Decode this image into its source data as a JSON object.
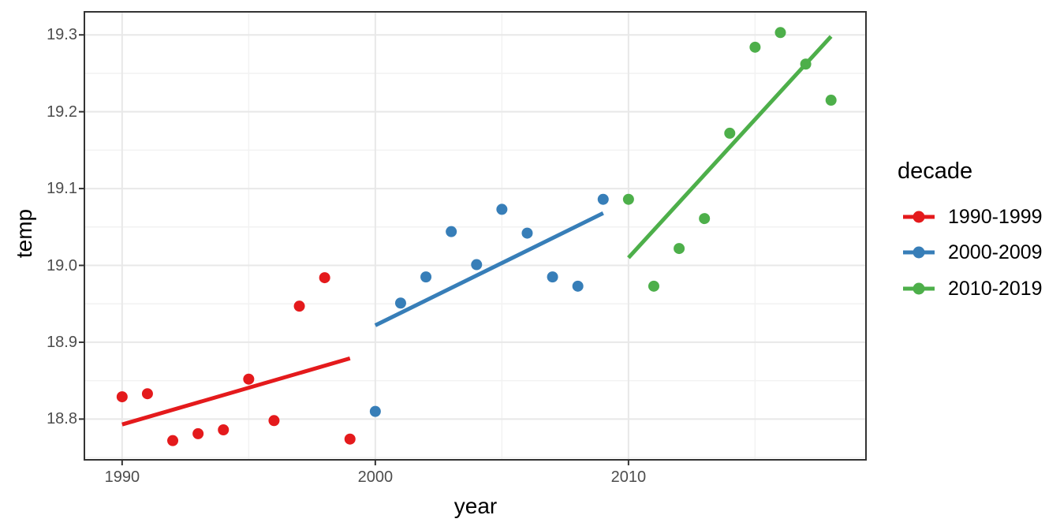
{
  "figure": {
    "background": "#FFFFFF"
  },
  "chart_data": {
    "type": "scatter",
    "title": "",
    "xlabel": "year",
    "ylabel": "temp",
    "grid": true,
    "legend": {
      "title": "decade",
      "position": "right"
    },
    "x_axis": {
      "lim": [
        1988.51,
        2019.38
      ],
      "ticks": [
        {
          "label": "1990",
          "value": 1990
        },
        {
          "label": "2000",
          "value": 2000
        },
        {
          "label": "2010",
          "value": 2010
        }
      ],
      "minor": [
        1995,
        2005,
        2015
      ]
    },
    "y_axis": {
      "lim": [
        18.747,
        19.33
      ],
      "ticks": [
        {
          "label": "19.3",
          "value": 19.3
        },
        {
          "label": "19.2",
          "value": 19.2
        },
        {
          "label": "19.1",
          "value": 19.1
        },
        {
          "label": "19.0",
          "value": 19.0
        },
        {
          "label": "18.9",
          "value": 18.9
        },
        {
          "label": "18.8",
          "value": 18.8
        }
      ],
      "minor": [
        19.25,
        19.15,
        19.05,
        18.95,
        18.85,
        18.75
      ]
    },
    "series": [
      {
        "name": "1990-1999",
        "color": "#E41A1C",
        "points": [
          [
            1990,
            18.829
          ],
          [
            1991,
            18.833
          ],
          [
            1992,
            18.772
          ],
          [
            1993,
            18.781
          ],
          [
            1994,
            18.786
          ],
          [
            1995,
            18.852
          ],
          [
            1996,
            18.798
          ],
          [
            1997,
            18.947
          ],
          [
            1998,
            18.984
          ],
          [
            1999,
            18.774
          ]
        ],
        "trend": {
          "x": [
            1990,
            1999
          ],
          "y": [
            18.793,
            18.879
          ]
        }
      },
      {
        "name": "2000-2009",
        "color": "#377EB8",
        "points": [
          [
            2000,
            18.81
          ],
          [
            2001,
            18.951
          ],
          [
            2002,
            18.985
          ],
          [
            2003,
            19.044
          ],
          [
            2004,
            19.001
          ],
          [
            2005,
            19.073
          ],
          [
            2006,
            19.042
          ],
          [
            2007,
            18.985
          ],
          [
            2008,
            18.973
          ],
          [
            2009,
            19.086
          ]
        ],
        "trend": {
          "x": [
            2000,
            2009
          ],
          "y": [
            18.922,
            19.068
          ]
        }
      },
      {
        "name": "2010-2019",
        "color": "#4DAF4A",
        "points": [
          [
            2010,
            19.086
          ],
          [
            2011,
            18.973
          ],
          [
            2012,
            19.022
          ],
          [
            2013,
            19.061
          ],
          [
            2014,
            19.172
          ],
          [
            2015,
            19.284
          ],
          [
            2016,
            19.303
          ],
          [
            2017,
            19.262
          ],
          [
            2018,
            19.215
          ]
        ],
        "trend": {
          "x": [
            2010,
            2018
          ],
          "y": [
            19.01,
            19.298
          ]
        }
      }
    ],
    "style": {
      "point_radius": 7,
      "trend_width": 5,
      "grid_major_color": "#E8E8E8",
      "grid_minor_color": "#F2F2F2",
      "panel_border_color": "#333333",
      "tick_color": "#333333",
      "tick_label_color": "#4D4D4D",
      "axis_title_color": "#000000"
    }
  }
}
